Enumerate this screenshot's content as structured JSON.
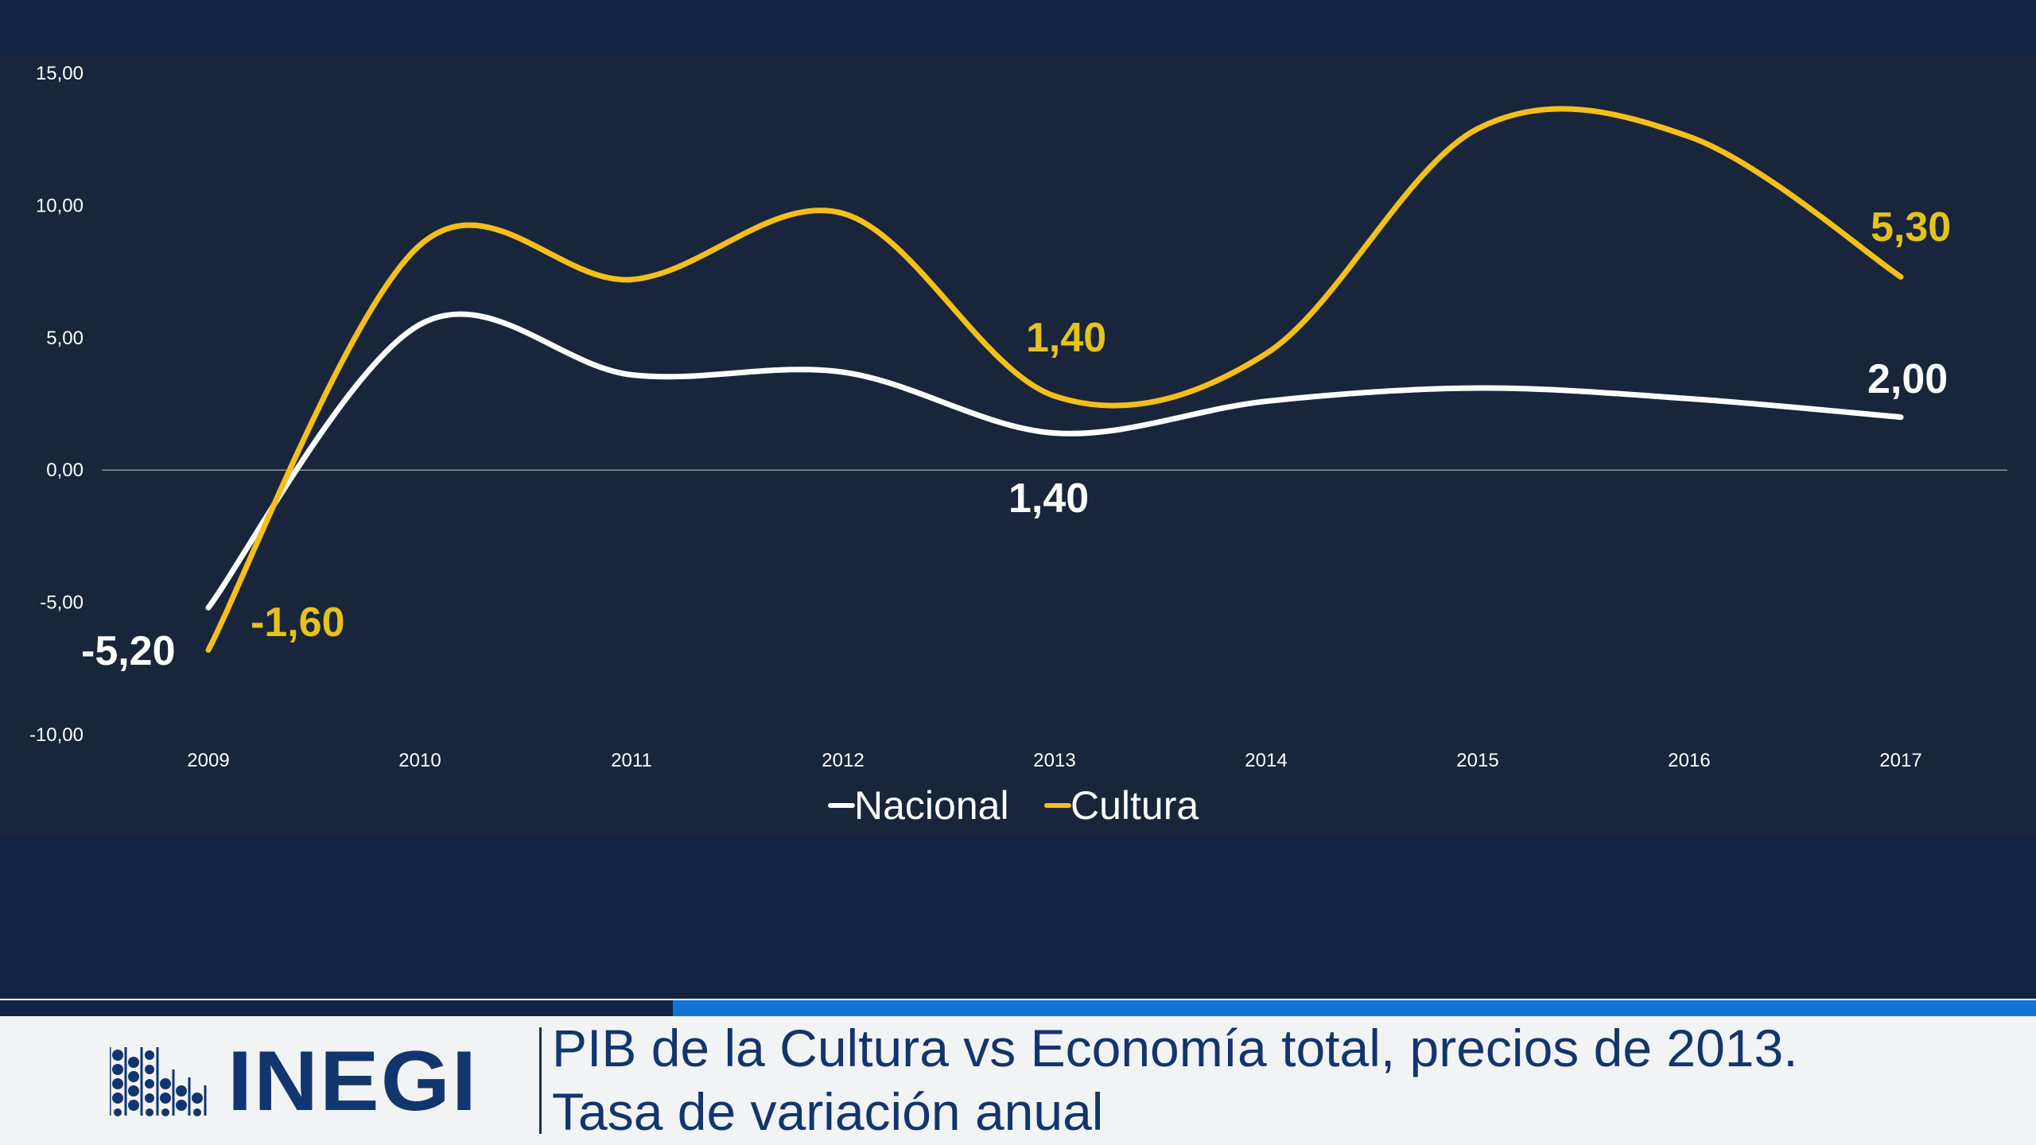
{
  "slide": {
    "title_line1": "PIB de la Cultura vs Economía total, precios de 2013.",
    "title_line2": "Tasa de variación anual",
    "logo_text": "INEGI"
  },
  "colors": {
    "nacional": "#ffffff",
    "cultura": "#f5bf1b",
    "cultura_label": "#e6c21c",
    "chart_background": "#19253a",
    "page_background": "#112443",
    "footer_background": "#f2f3f5",
    "footer_blue": "#1273d6",
    "logo": "#12356d"
  },
  "chart_data": {
    "type": "line",
    "x": [
      "2009",
      "2010",
      "2011",
      "2012",
      "2013",
      "2014",
      "2015",
      "2016",
      "2017"
    ],
    "series": [
      {
        "name": "Nacional",
        "values": [
          -5.2,
          5.5,
          3.6,
          3.7,
          1.4,
          2.6,
          3.1,
          2.7,
          2.0
        ]
      },
      {
        "name": "Cultura",
        "values": [
          -6.8,
          8.5,
          7.2,
          9.7,
          2.8,
          4.4,
          12.9,
          12.6,
          7.3
        ]
      }
    ],
    "y_ticks": [
      "15,00",
      "10,00",
      "5,00",
      "0,00",
      "-5,00",
      "-10,00"
    ],
    "ylim": [
      -10,
      15
    ],
    "smooth": true,
    "grid": false,
    "zero_line": true,
    "legend_position": "bottom",
    "data_labels": [
      {
        "series": "Nacional",
        "text": "-5,20"
      },
      {
        "series": "Cultura",
        "text": "-1,60"
      },
      {
        "series": "Cultura",
        "text": "1,40"
      },
      {
        "series": "Nacional",
        "text": "1,40"
      },
      {
        "series": "Cultura",
        "text": "5,30"
      },
      {
        "series": "Nacional",
        "text": "2,00"
      }
    ]
  }
}
